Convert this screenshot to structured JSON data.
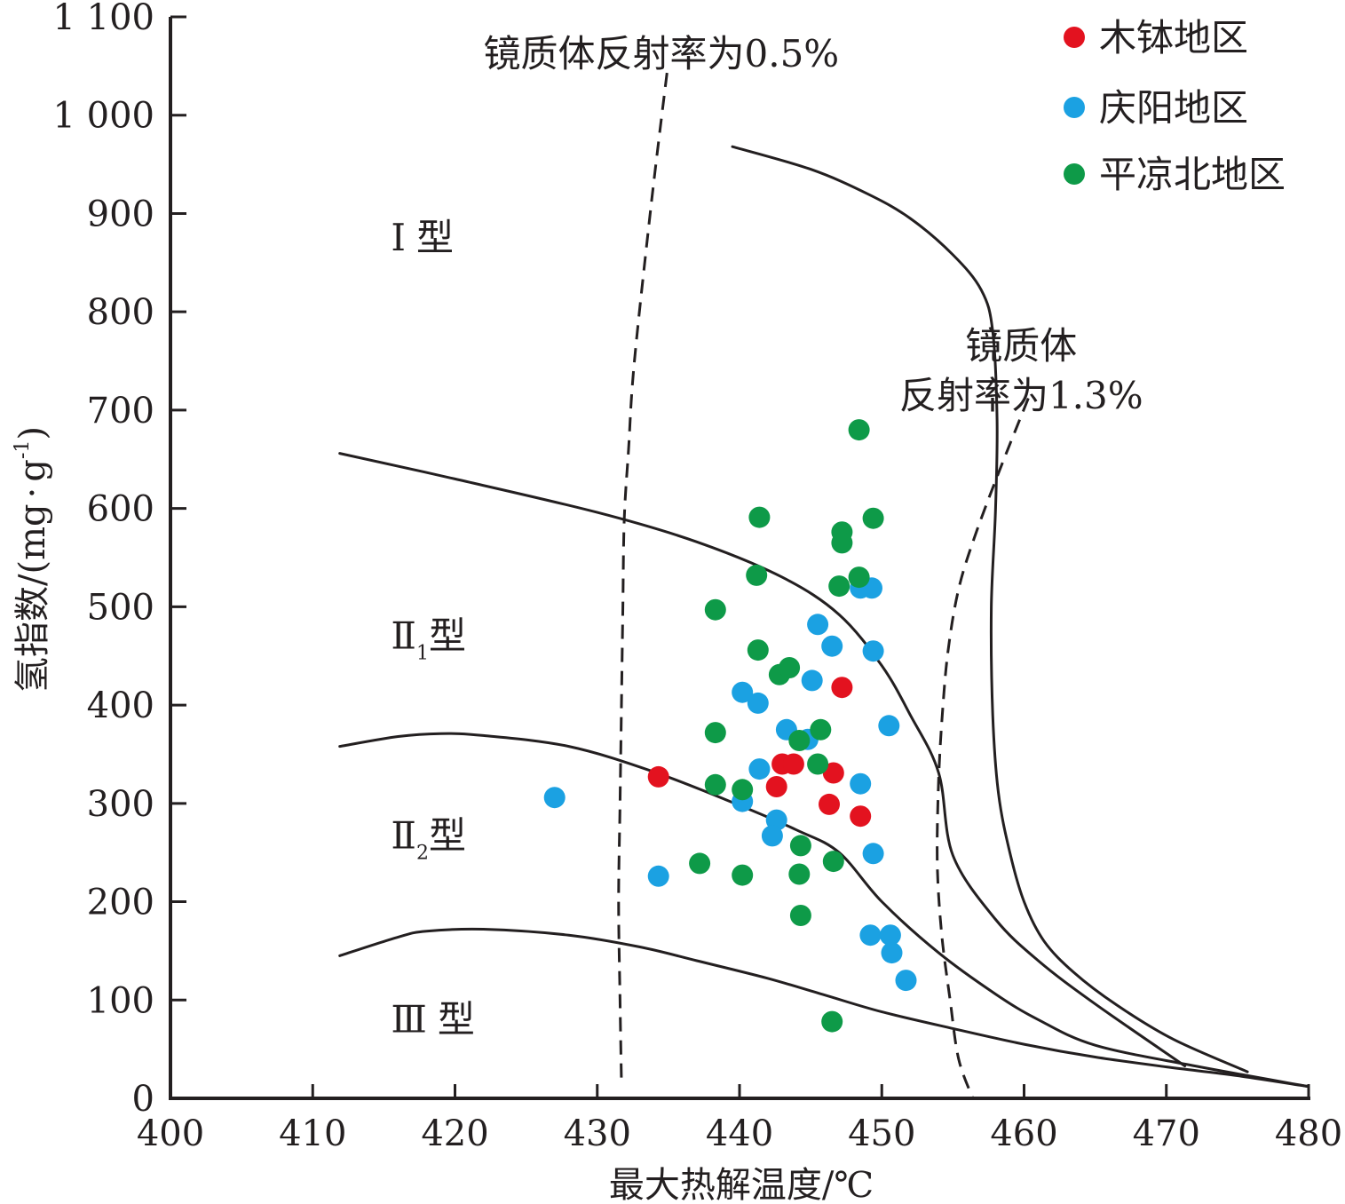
{
  "chart_data": {
    "type": "scatter",
    "xlabel": "最大热解温度/℃",
    "ylabel": "氢指数/(mg·g⁻¹)",
    "ylabel_parts": {
      "main": "氢指数/(mg",
      "dot": "·",
      "unit": "g",
      "exp": "-1",
      "close": ")"
    },
    "xlim": [
      400,
      480
    ],
    "ylim": [
      0,
      1100
    ],
    "x_ticks": [
      {
        "value": 400,
        "label": "400"
      },
      {
        "value": 410,
        "label": "410"
      },
      {
        "value": 420,
        "label": "420"
      },
      {
        "value": 430,
        "label": "430"
      },
      {
        "value": 440,
        "label": "440"
      },
      {
        "value": 450,
        "label": "450"
      },
      {
        "value": 460,
        "label": "460"
      },
      {
        "value": 470,
        "label": "470"
      },
      {
        "value": 480,
        "label": "480"
      }
    ],
    "y_ticks": [
      {
        "value": 0,
        "label": "0"
      },
      {
        "value": 100,
        "label": "100"
      },
      {
        "value": 200,
        "label": "200"
      },
      {
        "value": 300,
        "label": "300"
      },
      {
        "value": 400,
        "label": "400"
      },
      {
        "value": 500,
        "label": "500"
      },
      {
        "value": 600,
        "label": "600"
      },
      {
        "value": 700,
        "label": "700"
      },
      {
        "value": 800,
        "label": "800"
      },
      {
        "value": 900,
        "label": "900"
      },
      {
        "value": 1000,
        "label": "1 000"
      },
      {
        "value": 1100,
        "label": "1 100"
      }
    ],
    "grid": false,
    "legend_position": "top-right",
    "legend": [
      {
        "label": "木钵地区",
        "color": "#e3121f"
      },
      {
        "label": "庆阳地区",
        "color": "#1ba1e2"
      },
      {
        "label": "平凉北地区",
        "color": "#0e9a48"
      }
    ],
    "series": [
      {
        "name": "木钵地区",
        "color": "#e3121f",
        "points": [
          [
            434.3,
            327
          ],
          [
            443.0,
            340
          ],
          [
            443.8,
            340
          ],
          [
            442.6,
            317
          ],
          [
            446.6,
            331
          ],
          [
            446.3,
            299
          ],
          [
            448.5,
            287
          ],
          [
            447.2,
            418
          ]
        ]
      },
      {
        "name": "庆阳地区",
        "color": "#1ba1e2",
        "points": [
          [
            427.0,
            306
          ],
          [
            434.3,
            226
          ],
          [
            440.2,
            302
          ],
          [
            441.4,
            335
          ],
          [
            442.6,
            283
          ],
          [
            442.3,
            267
          ],
          [
            443.3,
            375
          ],
          [
            444.8,
            365
          ],
          [
            440.2,
            413
          ],
          [
            441.3,
            402
          ],
          [
            445.5,
            482
          ],
          [
            446.5,
            460
          ],
          [
            445.1,
            425
          ],
          [
            448.5,
            320
          ],
          [
            449.4,
            455
          ],
          [
            448.5,
            519
          ],
          [
            449.3,
            519
          ],
          [
            450.5,
            379
          ],
          [
            449.4,
            249
          ],
          [
            449.2,
            166
          ],
          [
            450.6,
            166
          ],
          [
            450.7,
            148
          ],
          [
            451.7,
            120
          ]
        ]
      },
      {
        "name": "平凉北地区",
        "color": "#0e9a48",
        "points": [
          [
            448.4,
            680
          ],
          [
            441.4,
            591
          ],
          [
            449.4,
            590
          ],
          [
            447.2,
            576
          ],
          [
            447.2,
            565
          ],
          [
            441.2,
            532
          ],
          [
            448.4,
            530
          ],
          [
            447.0,
            521
          ],
          [
            438.3,
            497
          ],
          [
            441.3,
            456
          ],
          [
            442.8,
            431
          ],
          [
            443.5,
            438
          ],
          [
            438.3,
            372
          ],
          [
            444.2,
            364
          ],
          [
            445.7,
            375
          ],
          [
            445.5,
            340
          ],
          [
            438.3,
            319
          ],
          [
            440.2,
            314
          ],
          [
            437.2,
            239
          ],
          [
            440.2,
            227
          ],
          [
            444.3,
            257
          ],
          [
            446.6,
            241
          ],
          [
            444.2,
            228
          ],
          [
            444.3,
            186
          ],
          [
            446.5,
            78
          ]
        ]
      }
    ],
    "boundary_curves": [
      {
        "id": "type-I-II1",
        "style": "solid",
        "points": [
          [
            411.9,
            656
          ],
          [
            420,
            630
          ],
          [
            430,
            596
          ],
          [
            437,
            566
          ],
          [
            443,
            530
          ],
          [
            447,
            492
          ],
          [
            450,
            440
          ],
          [
            452,
            390
          ],
          [
            454,
            331
          ],
          [
            455,
            247
          ],
          [
            458,
            182
          ],
          [
            461,
            140
          ],
          [
            465,
            96
          ],
          [
            471.3,
            33
          ]
        ]
      },
      {
        "id": "type-II1-II2",
        "style": "solid",
        "points": [
          [
            411.9,
            358
          ],
          [
            416,
            368
          ],
          [
            419,
            371
          ],
          [
            422,
            369
          ],
          [
            428,
            358
          ],
          [
            434,
            332
          ],
          [
            440,
            298
          ],
          [
            444,
            273
          ],
          [
            447,
            250
          ],
          [
            450,
            200
          ],
          [
            454,
            148
          ],
          [
            458,
            106
          ],
          [
            461,
            80
          ],
          [
            465,
            54
          ],
          [
            472,
            33
          ],
          [
            480,
            12
          ]
        ]
      },
      {
        "id": "type-II2-III",
        "style": "solid",
        "points": [
          [
            411.9,
            145
          ],
          [
            416,
            164
          ],
          [
            418,
            170
          ],
          [
            422,
            172
          ],
          [
            428,
            166
          ],
          [
            433,
            154
          ],
          [
            437,
            140
          ],
          [
            442,
            122
          ],
          [
            446,
            105
          ],
          [
            450,
            88
          ],
          [
            455,
            71
          ],
          [
            460,
            55
          ],
          [
            465,
            42
          ],
          [
            470,
            32
          ],
          [
            475,
            23
          ],
          [
            480,
            12
          ]
        ]
      },
      {
        "id": "maturity-limit",
        "style": "solid",
        "points": [
          [
            439.5,
            968
          ],
          [
            445,
            945
          ],
          [
            449,
            920
          ],
          [
            452,
            895
          ],
          [
            455,
            858
          ],
          [
            457,
            822
          ],
          [
            457.8,
            780
          ],
          [
            458.1,
            690
          ],
          [
            458.0,
            600
          ],
          [
            457.7,
            500
          ],
          [
            457.8,
            390
          ],
          [
            458.2,
            310
          ],
          [
            459,
            250
          ],
          [
            460,
            200
          ],
          [
            461.4,
            160
          ],
          [
            463.5,
            128
          ],
          [
            466.5,
            95
          ],
          [
            470.5,
            60
          ],
          [
            475.7,
            27
          ]
        ]
      },
      {
        "id": "ro-0.5",
        "style": "dashed",
        "points": [
          [
            434.9,
            1043
          ],
          [
            433.8,
            910
          ],
          [
            432.6,
            748
          ],
          [
            432.2,
            660
          ],
          [
            431.9,
            590
          ],
          [
            431.8,
            500
          ],
          [
            431.7,
            400
          ],
          [
            431.6,
            300
          ],
          [
            431.5,
            200
          ],
          [
            431.6,
            100
          ],
          [
            431.7,
            17
          ]
        ]
      },
      {
        "id": "ro-1.3",
        "style": "dashed",
        "points": [
          [
            460.3,
            712
          ],
          [
            458.2,
            636
          ],
          [
            456.5,
            570
          ],
          [
            455.4,
            518
          ],
          [
            454.7,
            460
          ],
          [
            454.3,
            400
          ],
          [
            454.0,
            325
          ],
          [
            453.9,
            240
          ],
          [
            454.2,
            168
          ],
          [
            454.8,
            100
          ],
          [
            455.4,
            40
          ],
          [
            456.4,
            0
          ]
        ]
      }
    ],
    "region_labels": [
      {
        "main": "Ⅰ",
        "sub": "",
        "suffix": "型",
        "x": 415.5,
        "y": 875
      },
      {
        "main": "Ⅱ",
        "sub": "1",
        "suffix": "型",
        "x": 415.5,
        "y": 470
      },
      {
        "main": "Ⅱ",
        "sub": "2",
        "suffix": "型",
        "x": 415.5,
        "y": 267
      },
      {
        "main": "Ⅲ",
        "sub": "",
        "suffix": "型",
        "x": 415.5,
        "y": 80
      }
    ],
    "annotations": [
      {
        "lines": [
          "镜质体反射率为0.5%"
        ],
        "x": 422.0,
        "y": 1062
      },
      {
        "lines": [
          "镜质体",
          "反射率为1.3%"
        ],
        "x": 459.8,
        "y": 765
      }
    ]
  }
}
